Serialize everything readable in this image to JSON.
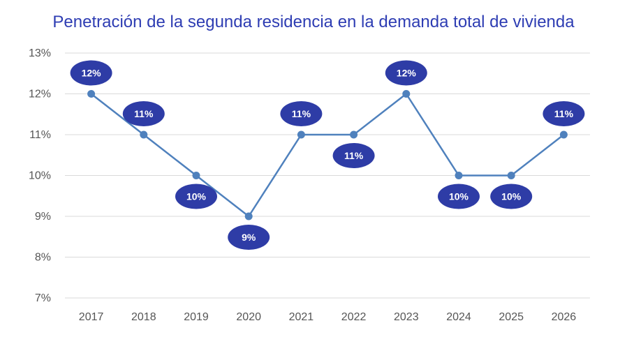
{
  "chart_data": {
    "type": "line",
    "title": "Penetración de la segunda residencia en la demanda total de vivienda",
    "categories": [
      "2017",
      "2018",
      "2019",
      "2020",
      "2021",
      "2022",
      "2023",
      "2024",
      "2025",
      "2026"
    ],
    "series": [
      {
        "values": [
          12,
          11,
          10,
          9,
          11,
          11,
          12,
          10,
          10,
          11
        ],
        "data_labels": [
          "12%",
          "11%",
          "10%",
          "9%",
          "11%",
          "11%",
          "12%",
          "10%",
          "10%",
          "11%"
        ],
        "label_positions": [
          "above",
          "above",
          "below",
          "below",
          "above",
          "below",
          "above",
          "below",
          "below",
          "above"
        ]
      }
    ],
    "ylim": [
      7,
      13
    ],
    "yticks": [
      7,
      8,
      9,
      10,
      11,
      12,
      13
    ],
    "ytick_labels": [
      "7%",
      "8%",
      "9%",
      "10%",
      "11%",
      "12%",
      "13%"
    ],
    "grid": true,
    "colors": {
      "line": "#4f81bd",
      "label_bg": "#2e3ca6",
      "title": "#2e3db3",
      "grid": "#d9d9d9"
    }
  }
}
